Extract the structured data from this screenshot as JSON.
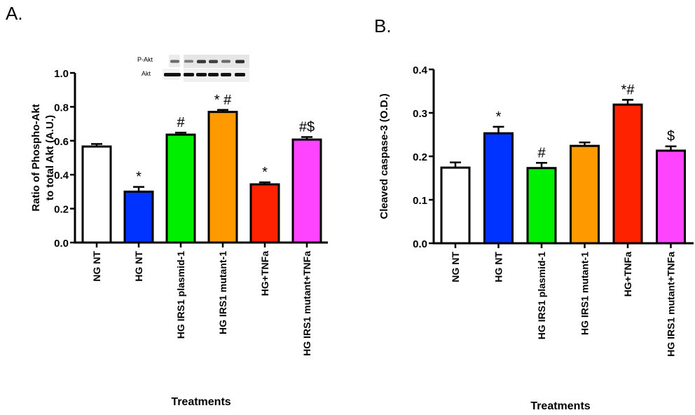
{
  "chart_data": [
    {
      "type": "bar",
      "panel_label": "A.",
      "title": "",
      "xlabel": "Treatments",
      "ylabel_lines": [
        "Ratio of Phospho-Akt",
        "to total  Akt (A.U.)"
      ],
      "ylim": [
        0,
        1.0
      ],
      "yticks": [
        0.0,
        0.2,
        0.4,
        0.6,
        0.8,
        1.0
      ],
      "ytick_labels": [
        "0.0",
        "0.2",
        "0.4",
        "0.6",
        "0.8",
        "1.0"
      ],
      "grid": false,
      "categories": [
        "NG NT",
        "HG NT",
        "HG IRS1 plasmid-1",
        "HG IRS1 mutant-1",
        "HG+TNFa",
        "HG IRS1 mutant+TNFa"
      ],
      "values": [
        0.566,
        0.3,
        0.636,
        0.77,
        0.343,
        0.607
      ],
      "errors": [
        0.015,
        0.028,
        0.012,
        0.012,
        0.012,
        0.015
      ],
      "colors": [
        "#ffffff",
        "#0033ff",
        "#00ee00",
        "#ff9900",
        "#ff2200",
        "#ff44ff"
      ],
      "annotations": [
        "",
        "*",
        "#",
        "* #",
        "*",
        "#$"
      ],
      "inset_blot": {
        "rows": [
          "P-Akt",
          "Akt"
        ],
        "lanes": 6
      }
    },
    {
      "type": "bar",
      "panel_label": "B.",
      "title": "",
      "xlabel": "Treatments",
      "ylabel_lines": [
        "Cleaved caspase-3 (O.D.)"
      ],
      "ylim": [
        0,
        0.4
      ],
      "yticks": [
        0.0,
        0.1,
        0.2,
        0.3,
        0.4
      ],
      "ytick_labels": [
        "0.0",
        "0.1",
        "0.2",
        "0.3",
        "0.4"
      ],
      "grid": false,
      "categories": [
        "NG NT",
        "HG NT",
        "HG IRS1 plasmid-1",
        "HG IRS1 mutant-1",
        "HG+TNFa",
        "HG IRS1 mutant+TNFa"
      ],
      "values": [
        0.174,
        0.253,
        0.173,
        0.224,
        0.319,
        0.213
      ],
      "errors": [
        0.012,
        0.015,
        0.012,
        0.008,
        0.011,
        0.01
      ],
      "colors": [
        "#ffffff",
        "#0033ff",
        "#00ee00",
        "#ff9900",
        "#ff2200",
        "#ff44ff"
      ],
      "annotations": [
        "",
        "*",
        "#",
        "",
        "*#",
        "$"
      ]
    }
  ]
}
